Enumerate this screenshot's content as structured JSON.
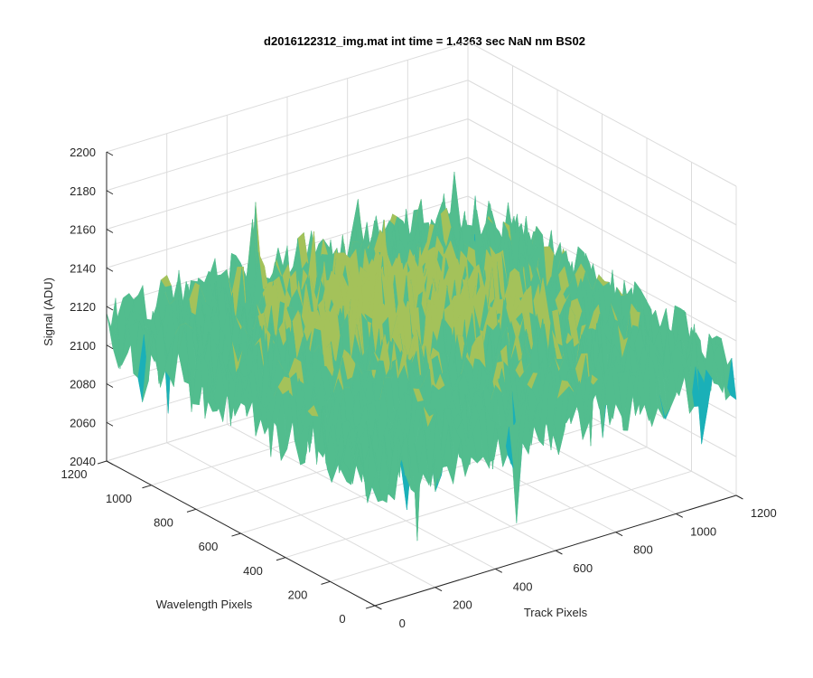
{
  "chart_data": {
    "type": "surface",
    "title": "d2016122312_img.mat int time = 1.4363 sec  NaN nm BS02",
    "xlabel": "Track Pixels",
    "ylabel": "Wavelength Pixels",
    "zlabel": "Signal (ADU)",
    "xlim": [
      0,
      1200
    ],
    "ylim": [
      0,
      1200
    ],
    "zlim": [
      2040,
      2200
    ],
    "x_ticks": [
      "0",
      "200",
      "400",
      "600",
      "800",
      "1000",
      "1200"
    ],
    "y_ticks": [
      "0",
      "200",
      "400",
      "600",
      "800",
      "1000",
      "1200"
    ],
    "z_ticks": [
      "2040",
      "2060",
      "2080",
      "2100",
      "2120",
      "2140",
      "2160",
      "2180",
      "2200"
    ],
    "grid": true,
    "surface_extent": {
      "x": [
        0,
        1200
      ],
      "y": [
        0,
        1200
      ]
    },
    "signal_mean": 2115,
    "signal_range": [
      2050,
      2190
    ],
    "colormap": [
      "#1f8fd8",
      "#1ab0b8",
      "#52bd8e",
      "#a4c25a",
      "#e6c43a",
      "#f2d820"
    ]
  }
}
